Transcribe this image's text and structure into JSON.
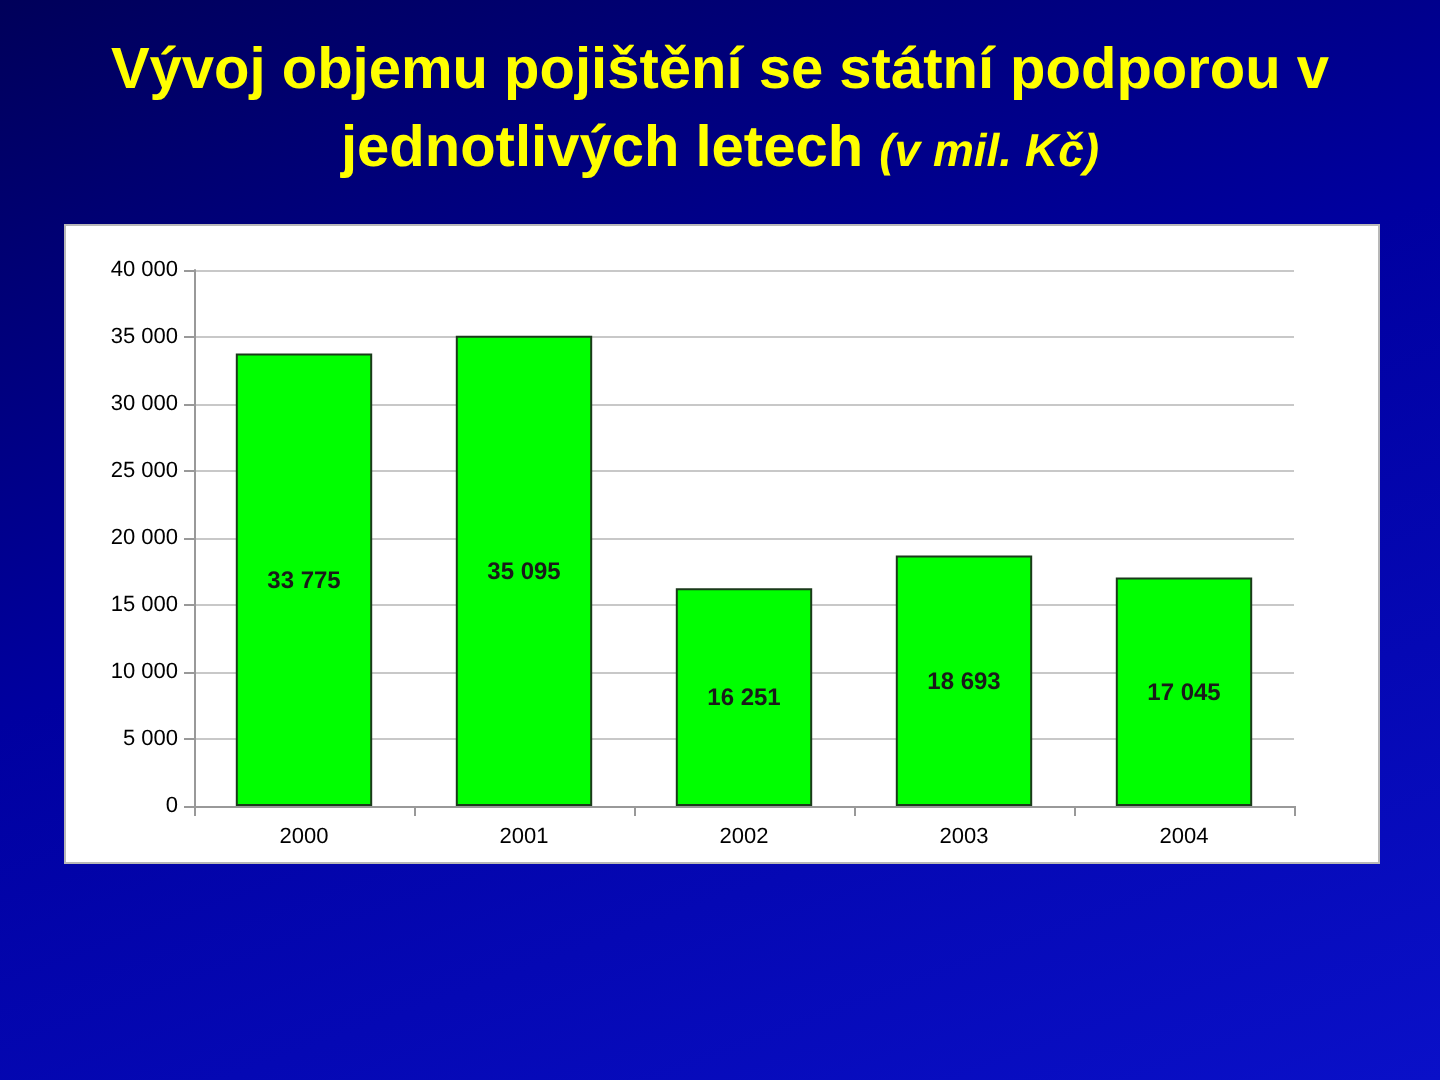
{
  "chart_data": {
    "type": "bar",
    "title": "Vývoj objemu pojištění se státní podporou v jednotlivých letech (v mil. Kč)",
    "categories": [
      "2000",
      "2001",
      "2002",
      "2003",
      "2004"
    ],
    "values": [
      33775,
      35095,
      16251,
      18693,
      17045
    ],
    "color": "#00ff00",
    "value_labels": [
      "33 775",
      "35 095",
      "16 251",
      "18 693",
      "17 045"
    ],
    "ylim": [
      0,
      40000
    ],
    "yticks": [
      0,
      {
        "value": 5000,
        "label": "5 000"
      },
      {
        "value": 10000,
        "label": "10 000"
      },
      {
        "value": 15000,
        "label": "15 000"
      },
      {
        "value": 20000,
        "label": "20 000"
      },
      {
        "value": 25000,
        "label": "25 000"
      },
      {
        "value": 30000,
        "label": "30 000"
      },
      {
        "value": 35000,
        "label": "35 000"
      },
      {
        "value": 40000,
        "label": "40 000"
      }
    ],
    "grid": "y"
  }
}
